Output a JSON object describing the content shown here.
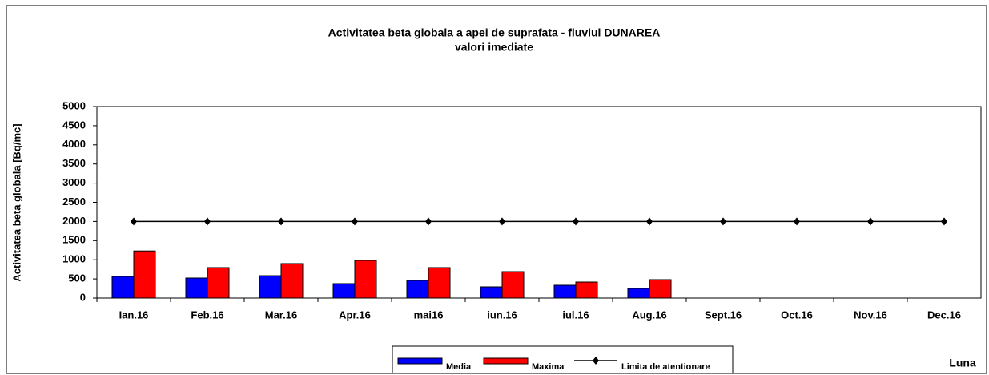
{
  "chart_data": {
    "type": "bar",
    "title": "Activitatea beta globala a apei de suprafata - fluviul DUNAREA",
    "subtitle": "valori imediate",
    "y_label": "Activitatea beta globala [Bq/mc]",
    "x_label": "Luna",
    "categories": [
      "Ian.16",
      "Feb.16",
      "Mar.16",
      "Apr.16",
      "mai16",
      "iun.16",
      "iul.16",
      "Aug.16",
      "Sept.16",
      "Oct.16",
      "Nov.16",
      "Dec.16"
    ],
    "series": [
      {
        "name": "Media",
        "color": "#0000ff",
        "type": "bar",
        "values": [
          565,
          523,
          585,
          377,
          460,
          293,
          335,
          251,
          null,
          null,
          null,
          null
        ]
      },
      {
        "name": "Maxima",
        "color": "#ff0000",
        "type": "bar",
        "values": [
          1230,
          795,
          900,
          983,
          795,
          690,
          418,
          481,
          null,
          null,
          null,
          null
        ]
      },
      {
        "name": "Limita de atentionare",
        "color": "#000000",
        "type": "line",
        "values": [
          2000,
          2000,
          2000,
          2000,
          2000,
          2000,
          2000,
          2000,
          2000,
          2000,
          2000,
          2000
        ]
      }
    ],
    "ylim": [
      0,
      5000
    ],
    "yticks": [
      0,
      500,
      1000,
      1500,
      2000,
      2500,
      3000,
      3500,
      4000,
      4500,
      5000
    ],
    "legend": "bottom"
  }
}
